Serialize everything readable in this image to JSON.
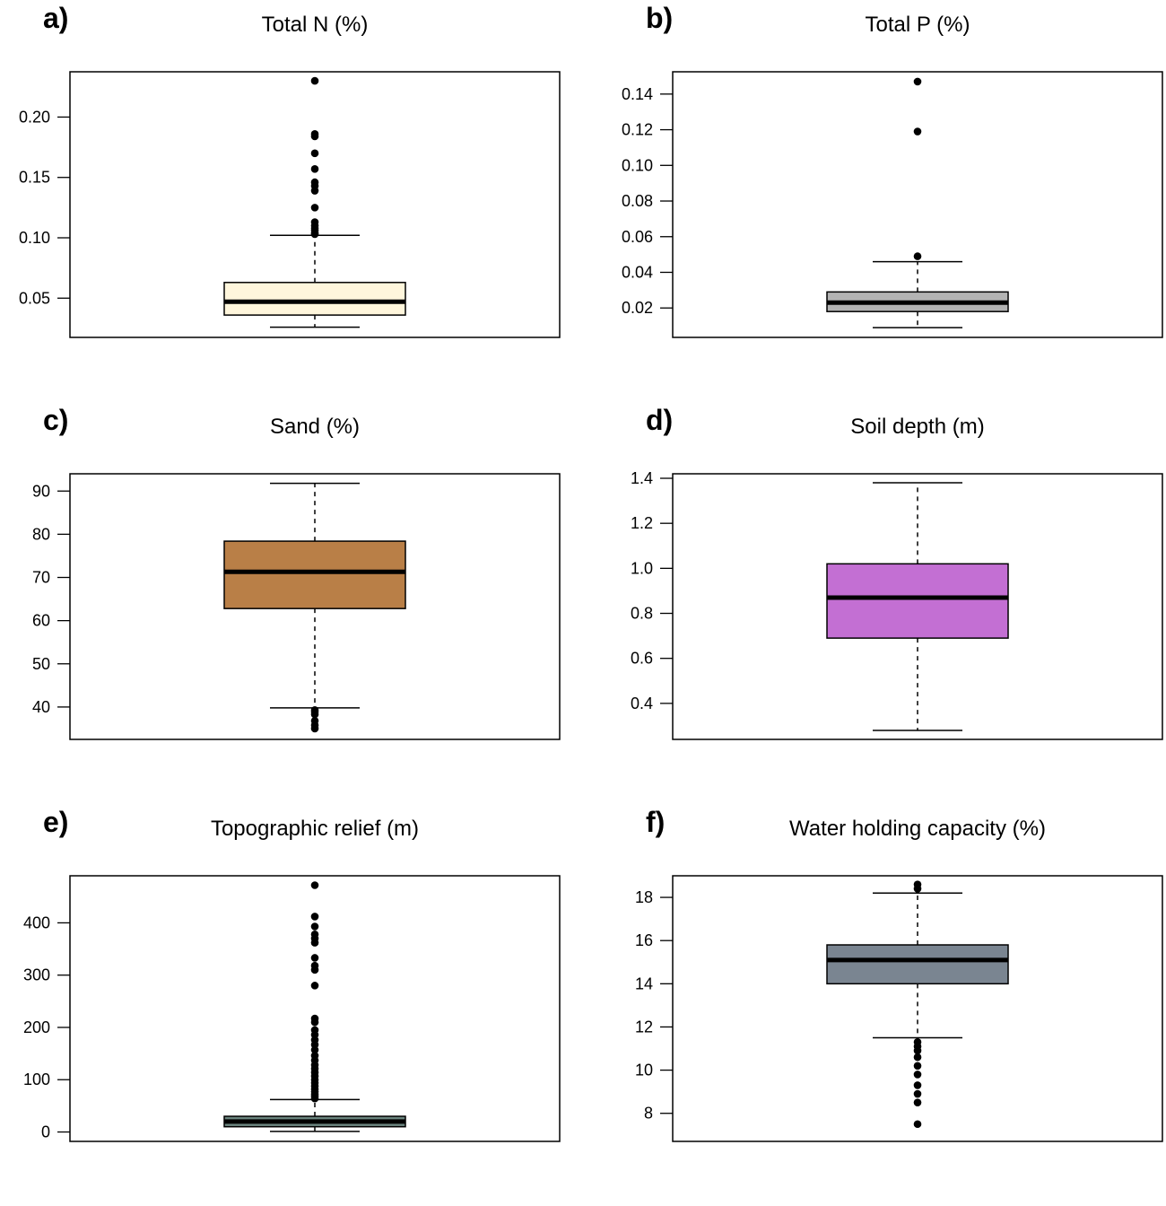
{
  "chart_data": [
    {
      "panel": "a)",
      "type": "boxplot",
      "title": "Total N (%)",
      "ylim": [
        0.0175,
        0.2375
      ],
      "yticks": [
        0.05,
        0.1,
        0.15,
        0.2
      ],
      "ytick_labels": [
        "0.05",
        "0.10",
        "0.15",
        "0.20"
      ],
      "box_color": "#fff6dc",
      "box": {
        "whisker_low": 0.026,
        "q1": 0.036,
        "median": 0.047,
        "q3": 0.063,
        "whisker_high": 0.102
      },
      "outliers": [
        0.103,
        0.104,
        0.106,
        0.108,
        0.11,
        0.113,
        0.125,
        0.139,
        0.143,
        0.146,
        0.157,
        0.17,
        0.184,
        0.186,
        0.23
      ]
    },
    {
      "panel": "b)",
      "type": "boxplot",
      "title": "Total P (%)",
      "ylim": [
        0.0035,
        0.1525
      ],
      "yticks": [
        0.02,
        0.04,
        0.06,
        0.08,
        0.1,
        0.12,
        0.14
      ],
      "ytick_labels": [
        "0.02",
        "0.04",
        "0.06",
        "0.08",
        "0.10",
        "0.12",
        "0.14"
      ],
      "box_color": "#b3b3b3",
      "box": {
        "whisker_low": 0.009,
        "q1": 0.018,
        "median": 0.023,
        "q3": 0.029,
        "whisker_high": 0.046
      },
      "outliers": [
        0.049,
        0.119,
        0.147
      ]
    },
    {
      "panel": "c)",
      "type": "boxplot",
      "title": "Sand (%)",
      "ylim": [
        32.5,
        94.0
      ],
      "yticks": [
        40,
        50,
        60,
        70,
        80,
        90
      ],
      "ytick_labels": [
        "40",
        "50",
        "60",
        "70",
        "80",
        "90"
      ],
      "box_color": "#b97f47",
      "box": {
        "whisker_low": 39.8,
        "q1": 62.8,
        "median": 71.3,
        "q3": 78.4,
        "whisker_high": 91.8
      },
      "outliers": [
        35.0,
        35.8,
        36.8,
        38.3,
        38.9,
        39.3
      ]
    },
    {
      "panel": "d)",
      "type": "boxplot",
      "title": "Soil depth (m)",
      "ylim": [
        0.24,
        1.42
      ],
      "yticks": [
        0.4,
        0.6,
        0.8,
        1.0,
        1.2,
        1.4
      ],
      "ytick_labels": [
        "0.4",
        "0.6",
        "0.8",
        "1.0",
        "1.2",
        "1.4"
      ],
      "box_color": "#c36fd3",
      "box": {
        "whisker_low": 0.28,
        "q1": 0.69,
        "median": 0.87,
        "q3": 1.02,
        "whisker_high": 1.38
      },
      "outliers": []
    },
    {
      "panel": "e)",
      "type": "boxplot",
      "title": "Topographic relief (m)",
      "ylim": [
        -18,
        490
      ],
      "yticks": [
        0,
        100,
        200,
        300,
        400
      ],
      "ytick_labels": [
        "0",
        "100",
        "200",
        "300",
        "400"
      ],
      "box_color": "#6a837d",
      "box": {
        "whisker_low": 1,
        "q1": 10,
        "median": 20,
        "q3": 30,
        "whisker_high": 62
      },
      "outliers": [
        64,
        68,
        72,
        77,
        82,
        88,
        94,
        100,
        107,
        114,
        121,
        128,
        137,
        146,
        157,
        167,
        176,
        186,
        195,
        210,
        217,
        280,
        310,
        318,
        333,
        362,
        370,
        378,
        393,
        412,
        472
      ]
    },
    {
      "panel": "f)",
      "type": "boxplot",
      "title": "Water holding capacity (%)",
      "ylim": [
        6.7,
        19.0
      ],
      "yticks": [
        8,
        10,
        12,
        14,
        16,
        18
      ],
      "ytick_labels": [
        "8",
        "10",
        "12",
        "14",
        "16",
        "18"
      ],
      "box_color": "#7a8591",
      "box": {
        "whisker_low": 11.5,
        "q1": 14.0,
        "median": 15.1,
        "q3": 15.8,
        "whisker_high": 18.2
      },
      "outliers": [
        7.5,
        8.5,
        8.9,
        9.3,
        9.8,
        10.2,
        10.6,
        10.9,
        11.1,
        11.3,
        18.4,
        18.6
      ]
    }
  ]
}
